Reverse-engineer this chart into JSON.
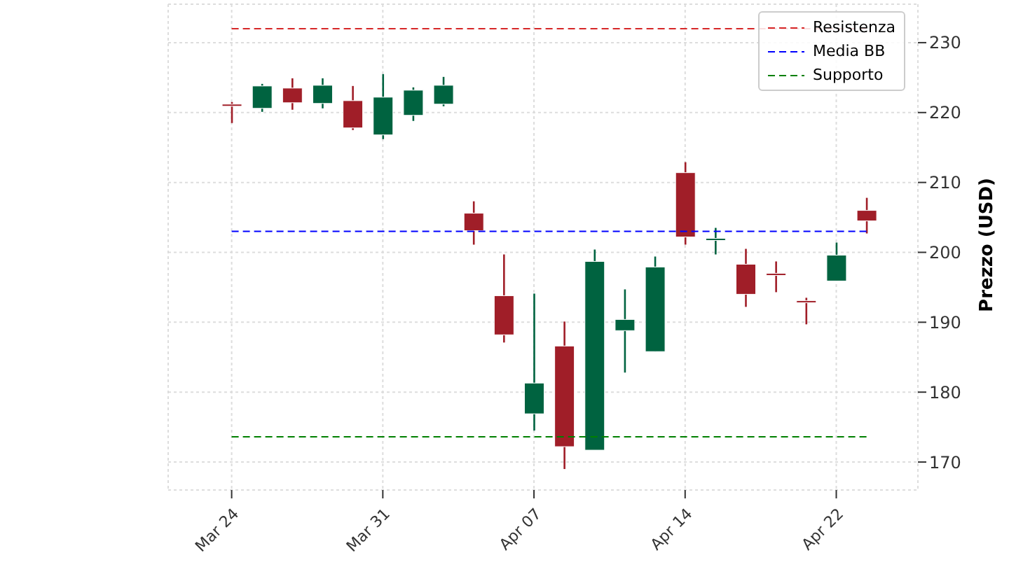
{
  "chart_data": {
    "type": "candlestick",
    "ylabel": "Prezzo (USD)",
    "categories": [
      "Mar 24",
      null,
      null,
      null,
      null,
      "Mar 31",
      null,
      null,
      null,
      null,
      "Apr 07",
      null,
      null,
      null,
      null,
      "Apr 14",
      null,
      null,
      null,
      null,
      "Apr 22",
      null
    ],
    "ohlc": [
      [
        221.2,
        221.5,
        218.5,
        220.9
      ],
      [
        220.6,
        224.1,
        220.1,
        223.8
      ],
      [
        223.5,
        224.9,
        220.4,
        221.4
      ],
      [
        221.3,
        224.9,
        220.6,
        223.9
      ],
      [
        221.7,
        223.8,
        217.5,
        217.8
      ],
      [
        216.8,
        225.5,
        216.2,
        222.2
      ],
      [
        219.6,
        223.6,
        218.8,
        223.2
      ],
      [
        221.2,
        225.1,
        220.9,
        223.9
      ],
      [
        205.6,
        207.3,
        201.1,
        203.1
      ],
      [
        193.8,
        199.7,
        187.1,
        188.2
      ],
      [
        176.9,
        194.1,
        174.5,
        181.3
      ],
      [
        186.6,
        190.1,
        169.0,
        172.2
      ],
      [
        171.7,
        200.4,
        171.7,
        198.7
      ],
      [
        188.8,
        194.7,
        182.8,
        190.4
      ],
      [
        185.8,
        199.4,
        185.8,
        197.9
      ],
      [
        211.4,
        212.9,
        201.1,
        202.2
      ],
      [
        201.7,
        203.5,
        199.7,
        202.0
      ],
      [
        198.3,
        200.5,
        192.2,
        194.0
      ],
      [
        197.0,
        198.7,
        194.3,
        196.9
      ],
      [
        193.1,
        193.5,
        189.7,
        193.0
      ],
      [
        195.9,
        201.4,
        195.9,
        199.6
      ],
      [
        206.0,
        207.8,
        202.7,
        204.5
      ]
    ],
    "colors": [
      "#a01e28",
      "#006340",
      "#a01e28",
      "#006340",
      "#a01e28",
      "#006340",
      "#006340",
      "#006340",
      "#a01e28",
      "#a01e28",
      "#006340",
      "#a01e28",
      "#006340",
      "#006340",
      "#006340",
      "#a01e28",
      "#006340",
      "#a01e28",
      "#a01e28",
      "#a01e28",
      "#006340",
      "#a01e28"
    ],
    "ylim": [
      166,
      235.5
    ],
    "yticks": [
      170,
      180,
      190,
      200,
      210,
      220,
      230
    ],
    "ref_lines": [
      {
        "axis": "y",
        "value": 232,
        "label": "Resistenza",
        "color": "#d62728",
        "line_style": "dashed"
      },
      {
        "axis": "y",
        "value": 203,
        "label": "Media BB",
        "color": "#0000ff",
        "line_style": "dashed"
      },
      {
        "axis": "y",
        "value": 173.6,
        "label": "Supporto",
        "color": "#008000",
        "line_style": "dashed"
      }
    ],
    "grid": true,
    "legend": "top right"
  }
}
